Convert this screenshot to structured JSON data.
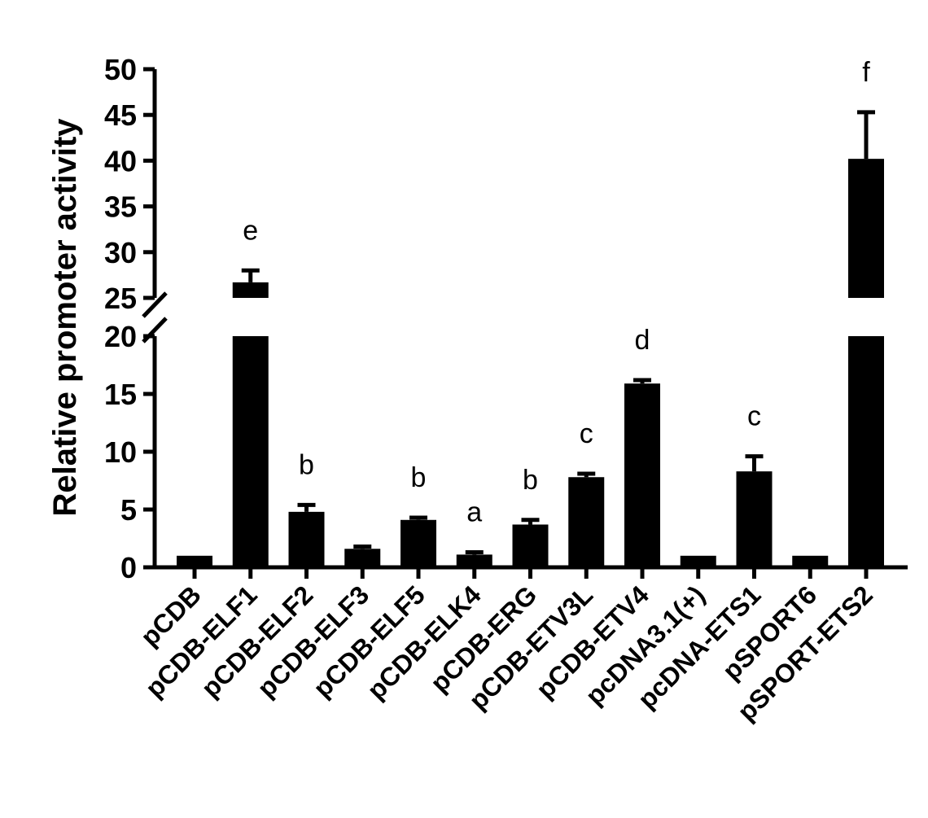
{
  "chart_data": {
    "type": "bar",
    "title": "",
    "xlabel": "",
    "ylabel": "Relative promoter activity",
    "y_axis_break": [
      20,
      25
    ],
    "ylim_lower": [
      0,
      20
    ],
    "ylim_upper": [
      25,
      50
    ],
    "yticks_lower": [
      "0",
      "5",
      "10",
      "15",
      "20"
    ],
    "yticks_upper": [
      "25",
      "30",
      "35",
      "40",
      "45",
      "50"
    ],
    "bar_color": "#000000",
    "categories": [
      "pCDB",
      "pCDB-ELF1",
      "pCDB-ELF2",
      "pCDB-ELF3",
      "pCDB-ELF5",
      "pCDB-ELK4",
      "pCDB-ERG",
      "pCDB-ETV3L",
      "pCDB-ETV4",
      "pcDNA3.1(+)",
      "pcDNA-ETS1",
      "pSPORT6",
      "pSPORT-ETS2"
    ],
    "values": [
      1.0,
      26.7,
      4.8,
      1.6,
      4.1,
      1.1,
      3.7,
      7.8,
      15.9,
      1.0,
      8.3,
      1.0,
      40.2
    ],
    "errors": [
      0,
      1.3,
      0.6,
      0.2,
      0.2,
      0.2,
      0.4,
      0.3,
      0.3,
      0,
      1.3,
      0,
      5.1
    ],
    "significance": [
      "",
      "e",
      "b",
      "",
      "b",
      "a",
      "b",
      "c",
      "d",
      "",
      "c",
      "",
      "f"
    ],
    "grid": false,
    "legend": "none"
  }
}
